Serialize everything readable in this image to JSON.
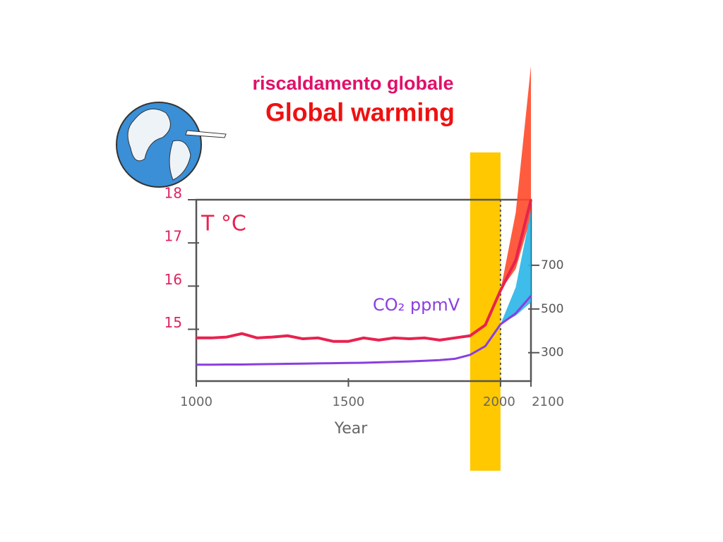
{
  "chart_data": {
    "type": "line",
    "title": "riscaldamento globale",
    "subtitle": "Global warming",
    "xlabel": "Year",
    "x": [
      1000,
      1050,
      1100,
      1150,
      1200,
      1250,
      1300,
      1350,
      1400,
      1450,
      1500,
      1550,
      1600,
      1650,
      1700,
      1750,
      1800,
      1850,
      1900,
      1950,
      2000,
      2050,
      2100
    ],
    "xlim": [
      1000,
      2100
    ],
    "xticks": [
      1000,
      1500,
      2000,
      2100
    ],
    "ylim": [
      13.8,
      18
    ],
    "yticks": [
      15,
      16,
      17,
      18
    ],
    "y2lim": [
      170,
      1000
    ],
    "y2ticks": [
      300,
      500,
      700
    ],
    "series": [
      {
        "name": "T °C",
        "color": "#e8224f",
        "values": [
          14.8,
          14.8,
          14.82,
          14.9,
          14.8,
          14.82,
          14.85,
          14.78,
          14.8,
          14.72,
          14.72,
          14.8,
          14.75,
          14.8,
          14.78,
          14.8,
          14.75,
          14.8,
          14.85,
          15.1,
          15.9,
          16.6,
          18
        ]
      },
      {
        "name": "CO₂ ppmV",
        "color": "#8a3fe0",
        "axis": "y2",
        "values": [
          245,
          245,
          246,
          246,
          247,
          248,
          249,
          250,
          251,
          252,
          253,
          254,
          256,
          258,
          260,
          263,
          266,
          272,
          290,
          330,
          430,
          480,
          560
        ]
      }
    ],
    "projections": [
      {
        "axis": "y",
        "x": [
          2000,
          2050,
          2100
        ],
        "low": [
          15.9,
          16.4,
          17.6
        ],
        "high": [
          15.9,
          17.7,
          21.1
        ],
        "color": "#ff4a2a"
      },
      {
        "axis": "y2",
        "x": [
          2000,
          2050,
          2100
        ],
        "low": [
          430,
          470,
          530
        ],
        "high": [
          430,
          600,
          950
        ],
        "color": "#29b6e8"
      }
    ],
    "highlight": {
      "x": [
        1900,
        2000
      ],
      "color": "#ffc800"
    }
  }
}
